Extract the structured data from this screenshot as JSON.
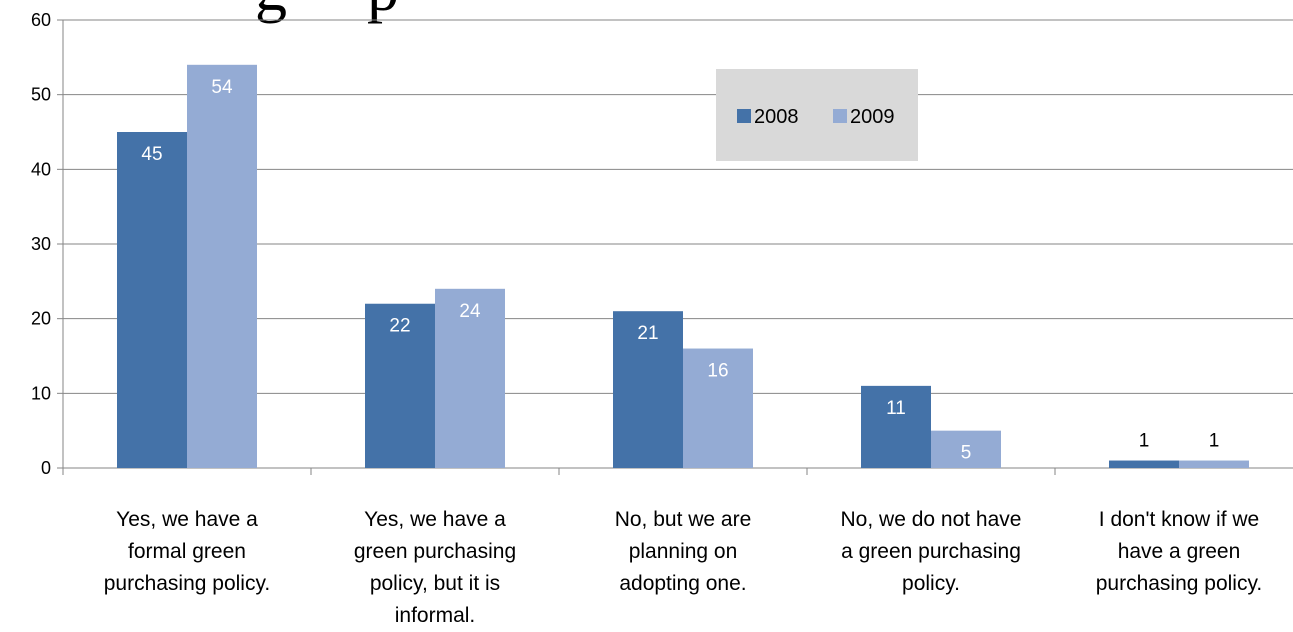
{
  "chart_data": {
    "type": "bar",
    "categories": [
      [
        "Yes, we have a",
        "formal green",
        "purchasing policy."
      ],
      [
        "Yes, we have a",
        "green purchasing",
        "policy, but it is",
        "informal."
      ],
      [
        "No, but we are",
        "planning on",
        "adopting one."
      ],
      [
        "No, we do not have",
        "a green purchasing",
        "policy."
      ],
      [
        "I don't know if we",
        "have a green",
        "purchasing policy."
      ]
    ],
    "series": [
      {
        "name": "2008",
        "values": [
          45,
          22,
          21,
          11,
          1
        ],
        "color": "#4472a8"
      },
      {
        "name": "2009",
        "values": [
          54,
          24,
          16,
          5,
          1
        ],
        "color": "#94abd4"
      }
    ],
    "ylim": [
      0,
      60
    ],
    "yticks": [
      0,
      10,
      20,
      30,
      40,
      50,
      60
    ],
    "grid": true,
    "legend_position": "top-center",
    "legend_background": "#d9d9d9",
    "title_fragment": "g     p"
  }
}
